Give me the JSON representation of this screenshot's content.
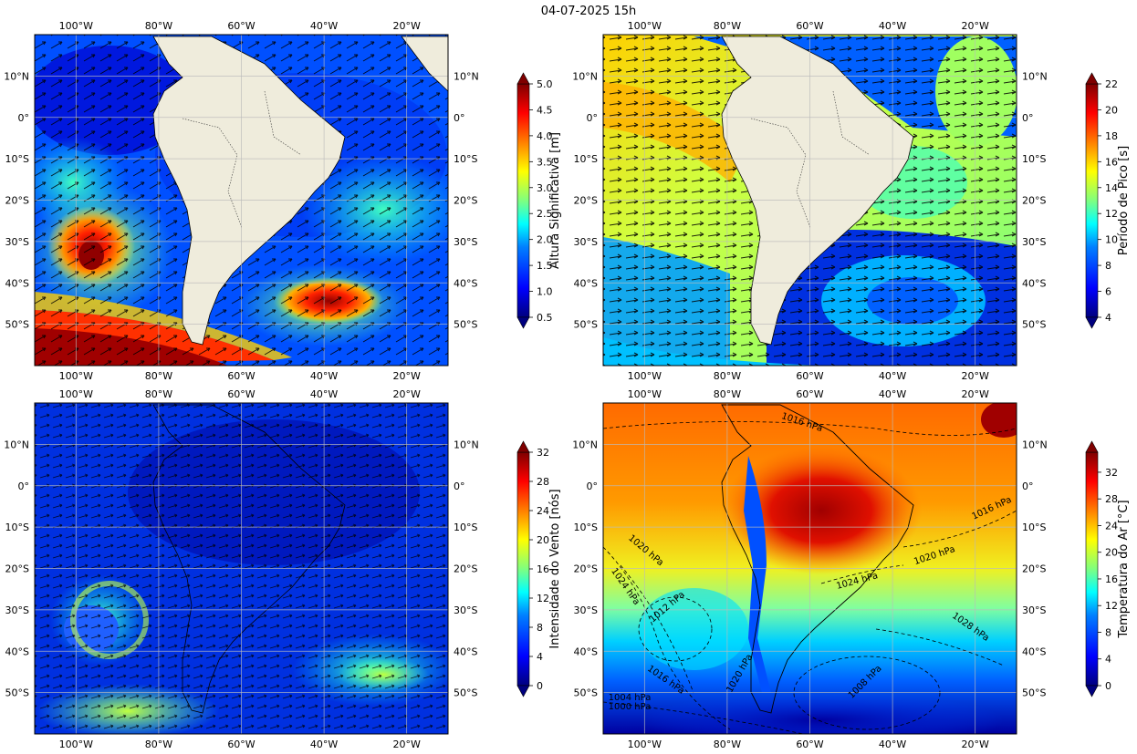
{
  "figure": {
    "title": "04-07-2025 15h"
  },
  "axes": {
    "lon_labels": [
      "100°W",
      "80°W",
      "60°W",
      "40°W",
      "20°W"
    ],
    "lat_labels": [
      "10°N",
      "0°",
      "10°S",
      "20°S",
      "30°S",
      "40°S",
      "50°S"
    ]
  },
  "panels": [
    {
      "id": "wave-height",
      "variable": "Altura Significativa",
      "colorbar_label": "Altura Significativa [m]",
      "colorbar_ticks": [
        "0.5",
        "1.0",
        "1.5",
        "2.0",
        "2.5",
        "3.0",
        "3.5",
        "4.0",
        "4.5",
        "5.0"
      ],
      "range": [
        0.5,
        5.0
      ],
      "overlay": "wave direction arrows",
      "colormap": "jet"
    },
    {
      "id": "peak-period",
      "variable": "Período de Pico",
      "colorbar_label": "Período de Pico [s]",
      "colorbar_ticks": [
        "4",
        "6",
        "8",
        "10",
        "12",
        "14",
        "16",
        "18",
        "20",
        "22"
      ],
      "range": [
        4,
        22
      ],
      "overlay": "wave direction arrows",
      "colormap": "jet"
    },
    {
      "id": "wind-speed",
      "variable": "Intensidade do Vento",
      "colorbar_label": "Intensidade do Vento [nós]",
      "colorbar_ticks": [
        "0",
        "4",
        "8",
        "12",
        "16",
        "20",
        "24",
        "28",
        "32"
      ],
      "range": [
        0,
        32
      ],
      "overlay": "wind vectors",
      "colormap": "jet"
    },
    {
      "id": "air-temperature",
      "variable": "Temperatura do Ar",
      "colorbar_label": "Temperatura do Ar [°C]",
      "colorbar_ticks": [
        "0",
        "4",
        "8",
        "12",
        "16",
        "20",
        "24",
        "28",
        "32"
      ],
      "range": [
        0,
        35
      ],
      "overlay": "isobars",
      "colormap": "jet",
      "isobar_labels": [
        "1016 hPa",
        "1016 hPa",
        "1020 hPa",
        "1020 hPa",
        "1024 hPa",
        "1024 hPa",
        "1012 hPa",
        "1028 hPa",
        "1016 hPa",
        "1008 hPa",
        "1004 hPa",
        "1000 hPa",
        "1020 hPa"
      ]
    }
  ],
  "colors": {
    "land": "#efecdc",
    "jet": [
      "#00007f",
      "#0000ff",
      "#007fff",
      "#00ffff",
      "#7fff7f",
      "#ffff00",
      "#ff7f00",
      "#ff0000",
      "#7f0000"
    ]
  }
}
